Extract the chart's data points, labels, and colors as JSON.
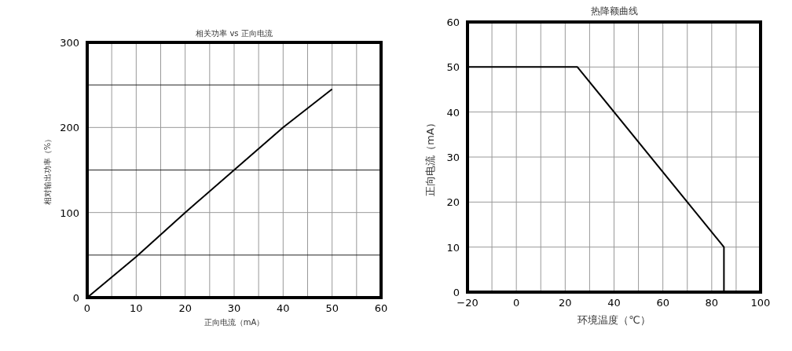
{
  "chart_data": [
    {
      "type": "line",
      "title": "相关功率 vs 正向电流",
      "xlabel": "正向电流（mA）",
      "ylabel": "相对输出功率（%）",
      "x": [
        0,
        10,
        20,
        30,
        40,
        50
      ],
      "series": [
        {
          "color": "#000000",
          "values": [
            0,
            48,
            100,
            150,
            200,
            245
          ]
        }
      ],
      "xlim": [
        0,
        60
      ],
      "xticks": [
        0,
        {
          "value": 5,
          "label": null
        },
        10,
        {
          "value": 15,
          "label": null
        },
        20,
        {
          "value": 25,
          "label": null
        },
        30,
        {
          "value": 35,
          "label": null
        },
        40,
        {
          "value": 45,
          "label": null
        },
        50,
        {
          "value": 55,
          "label": null
        },
        60
      ],
      "ylim": [
        0,
        300
      ],
      "yticks": [
        0,
        {
          "value": 50,
          "label": null
        },
        100,
        {
          "value": 150,
          "label": null
        },
        200,
        {
          "value": 250,
          "label": null
        },
        300
      ],
      "grid": true,
      "marker": "none",
      "line_style": "solid"
    },
    {
      "type": "line",
      "title": "热降额曲线",
      "xlabel": "环境温度（℃）",
      "ylabel": "正向电流（mA）",
      "x": [
        -20,
        25,
        85,
        85
      ],
      "series": [
        {
          "color": "#000000",
          "values": [
            50,
            50,
            10,
            0
          ]
        }
      ],
      "xlim": [
        -20,
        100
      ],
      "xticks": [
        {
          "value": -20,
          "label": "−20"
        },
        {
          "value": -10,
          "label": null
        },
        0,
        {
          "value": 10,
          "label": null
        },
        20,
        {
          "value": 30,
          "label": null
        },
        40,
        {
          "value": 50,
          "label": null
        },
        60,
        {
          "value": 70,
          "label": null
        },
        80,
        {
          "value": 90,
          "label": null
        },
        100
      ],
      "ylim": [
        0,
        60
      ],
      "yticks": [
        0,
        10,
        20,
        30,
        40,
        50,
        60
      ],
      "grid": true,
      "marker": "none",
      "line_style": "solid"
    }
  ]
}
